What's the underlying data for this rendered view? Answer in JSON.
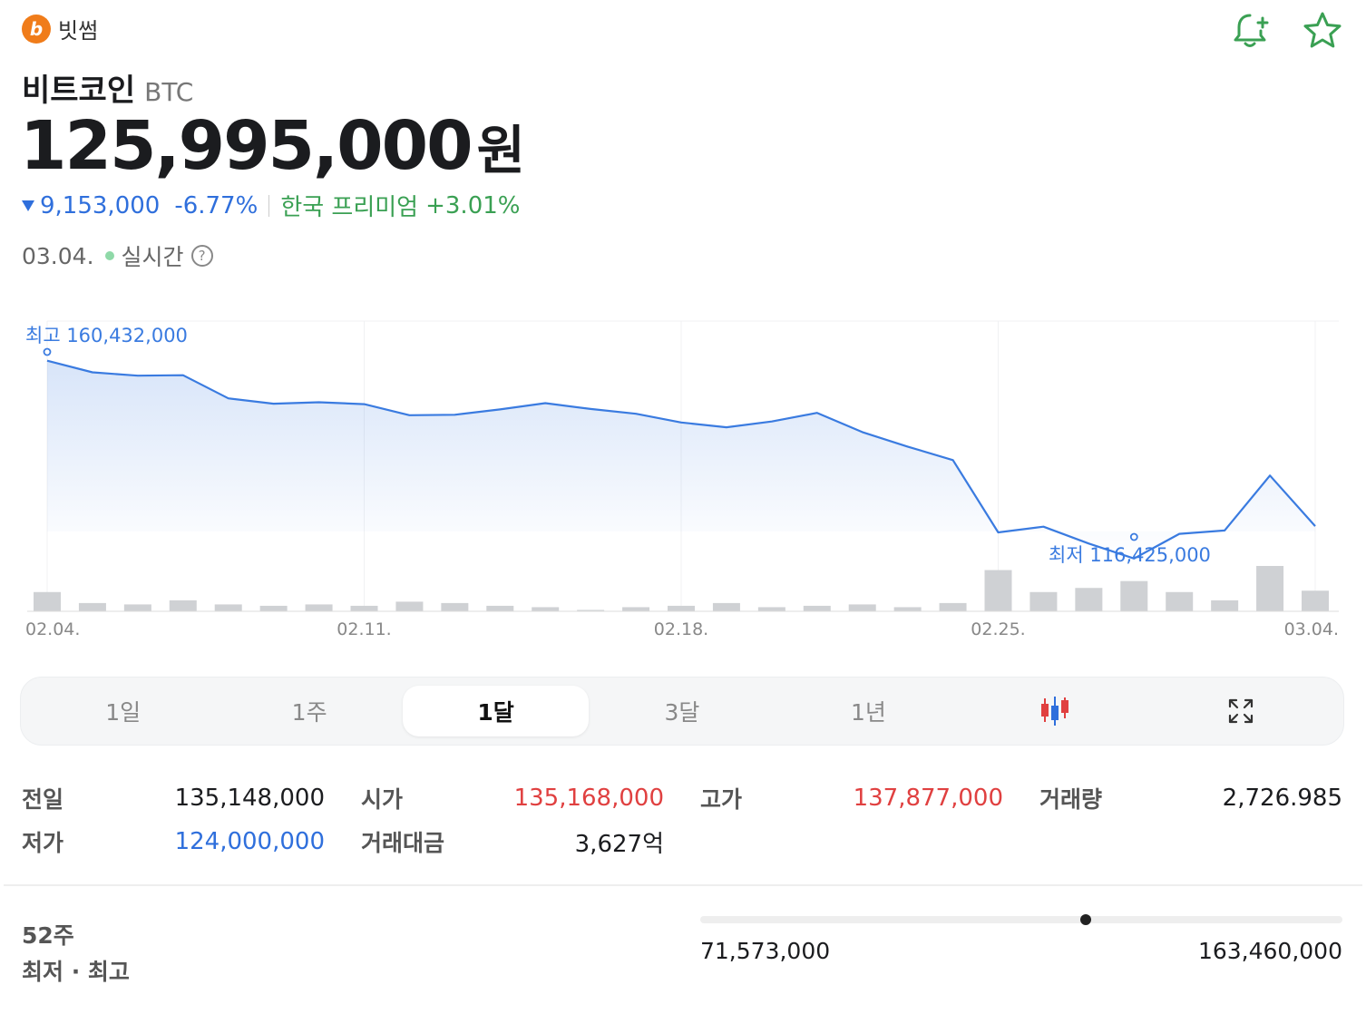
{
  "exchange": {
    "logo_letter": "b",
    "name": "빗썸"
  },
  "actions": {
    "alert_icon": "bell-plus-icon",
    "favorite_icon": "star-icon",
    "accent": "#3aa053"
  },
  "coin": {
    "name": "비트코인",
    "ticker": "BTC"
  },
  "price": {
    "value": "125,995,000",
    "unit": "원"
  },
  "change": {
    "amount": "9,153,000",
    "percent": "-6.77%",
    "premium_label": "한국 프리미엄",
    "premium_value": "+3.01%"
  },
  "timestamp": {
    "date": "03.04.",
    "live_label": "실시간",
    "help_symbol": "?"
  },
  "chart_data": {
    "type": "line",
    "period": "1달",
    "x": [
      "02.04",
      "02.05",
      "02.06",
      "02.07",
      "02.08",
      "02.09",
      "02.10",
      "02.11",
      "02.12",
      "02.13",
      "02.14",
      "02.15",
      "02.16",
      "02.17",
      "02.18",
      "02.19",
      "02.20",
      "02.21",
      "02.22",
      "02.23",
      "02.24",
      "02.25",
      "02.26",
      "02.27",
      "02.28",
      "03.01",
      "03.02",
      "03.03",
      "03.04"
    ],
    "series": [
      {
        "values": [
          158600000,
          156200000,
          155500000,
          155600000,
          150800000,
          149700000,
          150000000,
          149600000,
          147300000,
          147400000,
          148500000,
          149800000,
          148600000,
          147600000,
          145800000,
          144800000,
          146000000,
          147800000,
          143800000,
          140800000,
          138000000,
          123000000,
          124200000,
          120700000,
          117600000,
          122700000,
          123400000,
          134800000,
          124300000
        ]
      },
      {
        "name": "volume",
        "values": [
          1.4,
          0.6,
          0.5,
          0.8,
          0.5,
          0.4,
          0.5,
          0.4,
          0.7,
          0.6,
          0.4,
          0.3,
          0.1,
          0.3,
          0.4,
          0.6,
          0.3,
          0.4,
          0.5,
          0.3,
          0.6,
          3.0,
          1.4,
          1.7,
          2.2,
          1.4,
          0.8,
          3.3,
          1.5
        ]
      }
    ],
    "annotations": {
      "high_label": "최고 160,432,000",
      "low_label": "최저 116,425,000"
    },
    "x_ticks": [
      "02.04.",
      "02.11.",
      "02.18.",
      "02.25.",
      "03.04."
    ],
    "ylim": [
      116425000,
      160432000
    ],
    "grid": true,
    "colors": {
      "line": "#3a7be0",
      "volume": "#cfd1d4"
    }
  },
  "periods": [
    {
      "label": "1일",
      "active": false
    },
    {
      "label": "1주",
      "active": false
    },
    {
      "label": "1달",
      "active": true
    },
    {
      "label": "3달",
      "active": false
    },
    {
      "label": "1년",
      "active": false
    }
  ],
  "period_icons": {
    "candle": "candlestick-icon",
    "expand": "expand-icon"
  },
  "stats": {
    "prev_close_label": "전일",
    "prev_close": "135,148,000",
    "open_label": "시가",
    "open": "135,168,000",
    "high_label": "고가",
    "high": "137,877,000",
    "volume_label": "거래량",
    "volume": "2,726.985",
    "low_label": "저가",
    "low": "124,000,000",
    "turnover_label": "거래대금",
    "turnover": "3,627억"
  },
  "week52": {
    "label_top": "52주",
    "label_bottom": "최저 · 최고",
    "low": "71,573,000",
    "high": "163,460,000",
    "current_position": 0.6
  }
}
